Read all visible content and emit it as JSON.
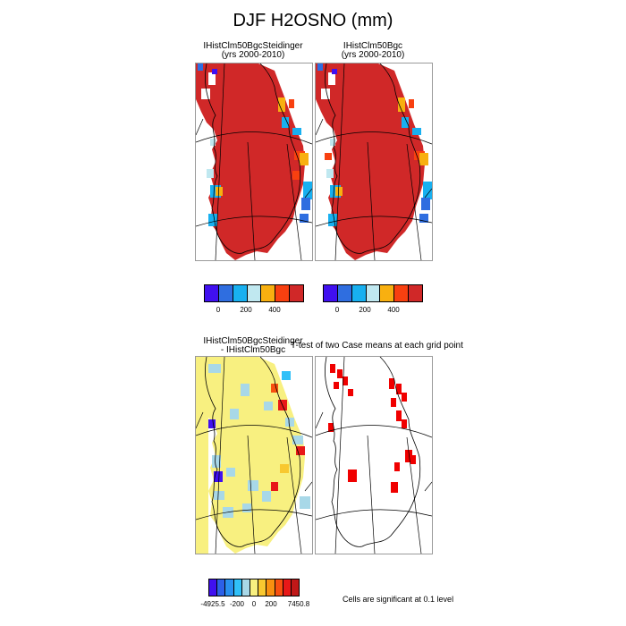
{
  "title": "DJF H2OSNO (mm)",
  "panels": {
    "p1": {
      "line1": "IHistClm50BgcSteidinger",
      "line2": "(yrs 2000-2010)"
    },
    "p2": {
      "line1": "IHistClm50Bgc",
      "line2": "(yrs 2000-2010)"
    },
    "p3": {
      "line1": "IHistClm50BgcSteidinger",
      "line2": "- IHistClm50Bgc"
    },
    "p4": {
      "line1": "T-test of two Case means at each grid point"
    }
  },
  "note": "Cells are significant at 0.1 level",
  "colors": {
    "field": [
      "#4010f0",
      "#2f6ee0",
      "#18b0f0",
      "#c0e8f0",
      "#f8b010",
      "#f84010",
      "#d02828"
    ],
    "diff": [
      "#4010f0",
      "#2c60e8",
      "#2890f0",
      "#30c0f8",
      "#a8d8e8",
      "#f8f080",
      "#f8c830",
      "#f89010",
      "#f85010",
      "#e81818",
      "#c01818"
    ],
    "sig": "#f00000"
  },
  "chart_data": [
    {
      "type": "heatmap",
      "title": "IHistClm50BgcSteidinger (yrs 2000-2010)",
      "colorbar_ticks": [
        "0",
        "200",
        "400"
      ],
      "dominant_category": "> 400"
    },
    {
      "type": "heatmap",
      "title": "IHistClm50Bgc (yrs 2000-2010)",
      "colorbar_ticks": [
        "0",
        "200",
        "400"
      ],
      "dominant_category": "> 400"
    },
    {
      "type": "heatmap",
      "title": "IHistClm50BgcSteidinger - IHistClm50Bgc",
      "colorbar_ticks": [
        "-4925.5",
        "-200",
        "0",
        "200",
        "7450.8"
      ],
      "dominant_category": "0 to 200"
    },
    {
      "type": "heatmap",
      "title": "T-test of two Case means at each grid point",
      "legend": "Cells are significant at 0.1 level"
    }
  ]
}
